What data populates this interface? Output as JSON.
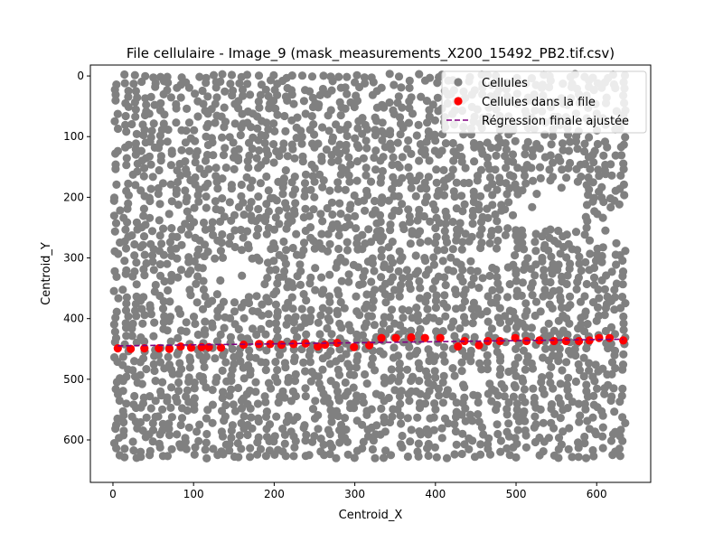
{
  "chart_data": {
    "type": "scatter",
    "title": "File cellulaire - Image_9 (mask_measurements_X200_15492_PB2.tif.csv)",
    "xlabel": "Centroid_X",
    "ylabel": "Centroid_Y",
    "xlim": [
      -28,
      667
    ],
    "ylim": [
      670,
      -18
    ],
    "y_inverted": true,
    "grid": false,
    "legend_position": "top-right",
    "xticks": [
      0,
      100,
      200,
      300,
      400,
      500,
      600
    ],
    "yticks": [
      0,
      100,
      200,
      300,
      400,
      500,
      600
    ],
    "colors": {
      "cells": "#808080",
      "queue": "#ff0000",
      "regression": "#800080"
    },
    "series": [
      {
        "name": "Cellules",
        "kind": "scatter",
        "note": "dense field of ~1500 gray cell centroids; representative grid sample",
        "grid_x_range": [
          5,
          637
        ],
        "grid_y_range": [
          0,
          636
        ],
        "grid_step": 11
      },
      {
        "name": "Cellules dans la file",
        "kind": "scatter",
        "x": [
          6,
          22,
          39,
          57,
          70,
          84,
          97,
          110,
          119,
          134,
          162,
          181,
          195,
          209,
          224,
          239,
          254,
          263,
          278,
          299,
          318,
          333,
          351,
          370,
          387,
          406,
          428,
          436,
          454,
          465,
          480,
          499,
          513,
          529,
          547,
          562,
          578,
          591,
          603,
          616,
          633
        ],
        "y": [
          449,
          450,
          449,
          449,
          450,
          446,
          448,
          447,
          447,
          448,
          443,
          442,
          442,
          443,
          442,
          441,
          446,
          443,
          440,
          447,
          444,
          432,
          432,
          431,
          432,
          432,
          446,
          437,
          444,
          437,
          437,
          432,
          437,
          436,
          437,
          437,
          437,
          436,
          432,
          432,
          436
        ]
      },
      {
        "name": "Régression finale ajustée",
        "kind": "line",
        "style": "dashed",
        "x": [
          6,
          633
        ],
        "y": [
          445,
          434
        ]
      }
    ]
  }
}
